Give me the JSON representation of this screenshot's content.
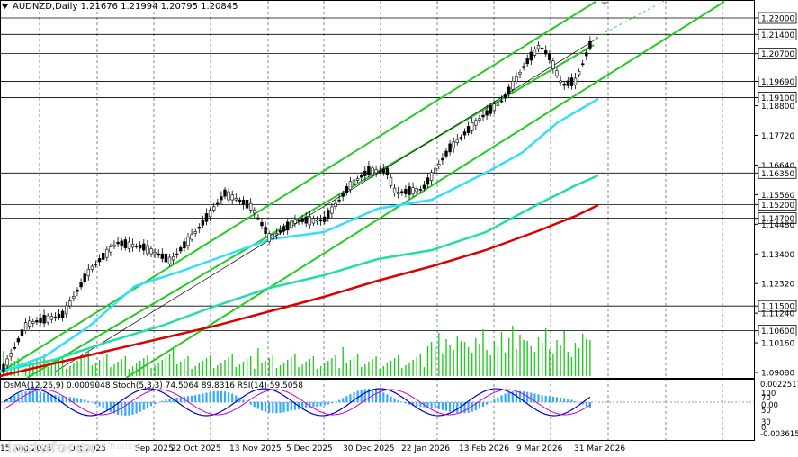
{
  "header": {
    "symbol": "AUDNZD,Daily",
    "ohlc": "1.21676 1.21994 1.20795 1.20845"
  },
  "oscillator_legend": "OsMA(12,26,9) 0.0009048 Stoch(5,3,3) 74.5064 89.8316 RSI(14) 59.5058",
  "watermark": {
    "brand": "instaforex",
    "tagline": "Instant Forex Trading"
  },
  "colors": {
    "price_up": "#000000",
    "ma_fast": "#33ddff",
    "ma_mid": "#22ddaa",
    "ma_slow": "#dd0000",
    "channel": "#22cc22",
    "histogram": "#22cc22",
    "osma": "#33aaff",
    "stoch_main": "#0000cc",
    "stoch_signal": "#cc00cc",
    "label_bg": "#000000"
  },
  "chart_data": {
    "type": "line",
    "price_axis_labels": [
      "1.22000",
      "1.21400",
      "1.20700",
      "1.19690",
      "1.19100",
      "1.18800",
      "1.17720",
      "1.16640",
      "1.16350",
      "1.15560",
      "1.15200",
      "1.14700",
      "1.14480",
      "1.13400",
      "1.12320",
      "1.11500",
      "1.11240",
      "1.10600",
      "1.10160",
      "1.09080"
    ],
    "highlight_levels": [
      1.22,
      1.214,
      1.207,
      1.1969,
      1.191,
      1.1635,
      1.152,
      1.147,
      1.115,
      1.106
    ],
    "x_tick_labels": [
      "15 Aug 2025",
      "1 Oct 2025",
      "Sep 2025",
      "22 Oct 2025",
      "13 Nov 2025",
      "5 Dec 2025",
      "30 Dec 2025",
      "22 Jan 2026",
      "13 Feb 2026",
      "9 Mar 2026",
      "31 Mar 2026"
    ],
    "ylim": [
      1.0908,
      1.2265
    ],
    "osc_axis_labels": [
      "0.0022517",
      "100",
      "70",
      "0.00",
      "50",
      "30",
      "0",
      "-0.0036155"
    ]
  }
}
